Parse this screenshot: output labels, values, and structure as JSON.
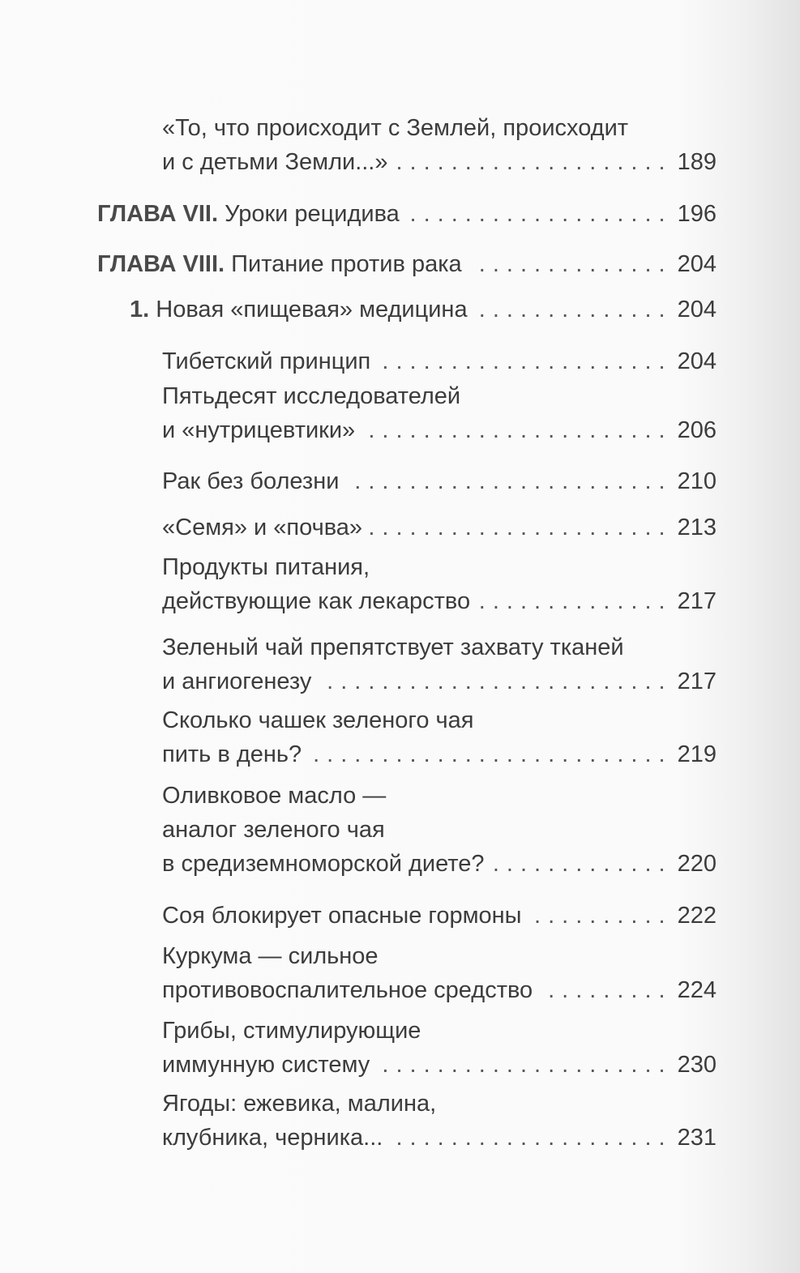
{
  "toc": {
    "entries": [
      {
        "prefix": "",
        "lines": [
          "«То, что происходит с Землей, происходит",
          "и с детьми Земли...»"
        ],
        "page": "189"
      },
      {
        "prefix": "ГЛАВА VII.",
        "lines": [
          " Уроки рецидива"
        ],
        "page": "196"
      },
      {
        "prefix": "ГЛАВА VIII.",
        "lines": [
          " Питание против рака"
        ],
        "page": "204"
      },
      {
        "prefix": "1.",
        "lines": [
          " Новая «пищевая» медицина"
        ],
        "page": "204"
      },
      {
        "prefix": "",
        "lines": [
          "Тибетский принцип"
        ],
        "page": "204"
      },
      {
        "prefix": "",
        "lines": [
          "Пятьдесят исследователей",
          "и «нутрицевтики»"
        ],
        "page": "206"
      },
      {
        "prefix": "",
        "lines": [
          "Рак без болезни"
        ],
        "page": "210"
      },
      {
        "prefix": "",
        "lines": [
          "«Семя» и «почва»"
        ],
        "page": "213"
      },
      {
        "prefix": "",
        "lines": [
          "Продукты питания,",
          "действующие как лекарство"
        ],
        "page": "217"
      },
      {
        "prefix": "",
        "lines": [
          "Зеленый чай препятствует захвату тканей",
          "и ангиогенезу"
        ],
        "page": "217"
      },
      {
        "prefix": "",
        "lines": [
          "Сколько чашек зеленого чая",
          "пить в день?"
        ],
        "page": "219"
      },
      {
        "prefix": "",
        "lines": [
          "Оливковое масло —",
          "аналог зеленого чая",
          "в средиземноморской диете?"
        ],
        "page": "220"
      },
      {
        "prefix": "",
        "lines": [
          "Соя блокирует опасные гормоны"
        ],
        "page": "222"
      },
      {
        "prefix": "",
        "lines": [
          "Куркума — сильное",
          "противовоспалительное средство"
        ],
        "page": "224"
      },
      {
        "prefix": "",
        "lines": [
          "Грибы, стимулирующие",
          "иммунную систему"
        ],
        "page": "230"
      },
      {
        "prefix": "",
        "lines": [
          "Ягоды: ежевика, малина,",
          "клубника, черника..."
        ],
        "page": "231"
      }
    ]
  }
}
